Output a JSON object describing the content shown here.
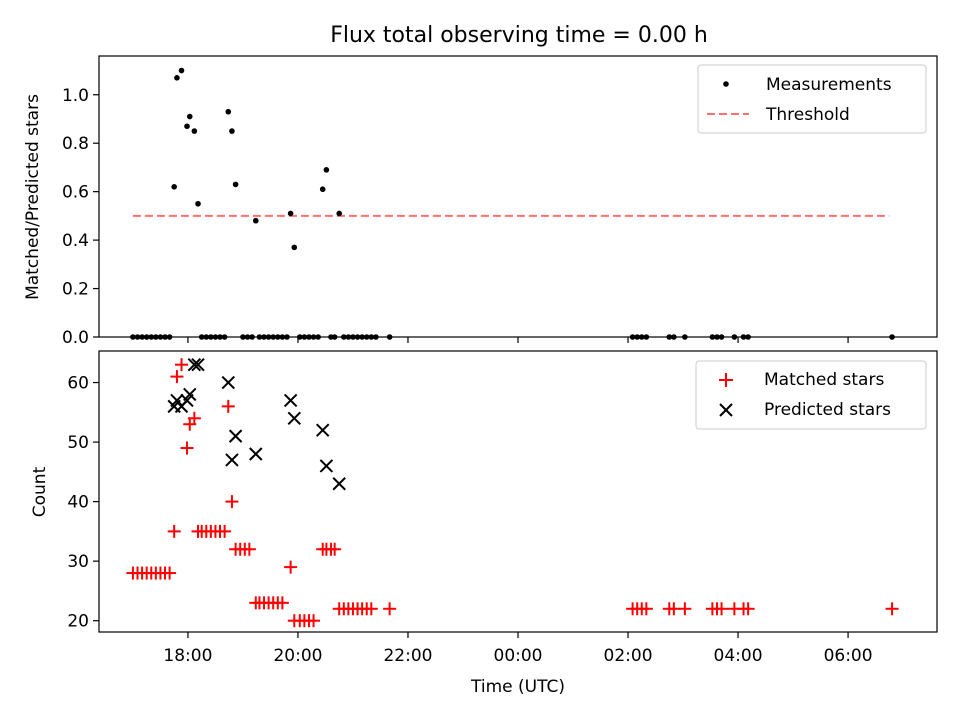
{
  "chart_data": [
    {
      "type": "scatter",
      "title": "Flux total observing time = 0.00 h",
      "xlabel": "",
      "ylabel": "Matched/Predicted stars",
      "xlim": [
        "16:23",
        "07:37"
      ],
      "ylim": [
        0,
        1.16
      ],
      "yticks": [
        "0.0",
        "0.2",
        "0.4",
        "0.6",
        "0.8",
        "1.0"
      ],
      "grid": false,
      "legend_position": "top-right",
      "series": [
        {
          "name": "Measurements",
          "marker": "dot",
          "color": "#000000",
          "points": [
            {
              "x": "17:00",
              "y": 0
            },
            {
              "x": "17:05",
              "y": 0
            },
            {
              "x": "17:10",
              "y": 0
            },
            {
              "x": "17:15",
              "y": 0
            },
            {
              "x": "17:20",
              "y": 0
            },
            {
              "x": "17:25",
              "y": 0
            },
            {
              "x": "17:30",
              "y": 0
            },
            {
              "x": "17:35",
              "y": 0
            },
            {
              "x": "17:40",
              "y": 0
            },
            {
              "x": "17:45",
              "y": 0.62
            },
            {
              "x": "17:48",
              "y": 1.07
            },
            {
              "x": "17:53",
              "y": 1.1
            },
            {
              "x": "17:59",
              "y": 0.87
            },
            {
              "x": "18:02",
              "y": 0.91
            },
            {
              "x": "18:07",
              "y": 0.85
            },
            {
              "x": "18:11",
              "y": 0.55
            },
            {
              "x": "18:15",
              "y": 0
            },
            {
              "x": "18:20",
              "y": 0
            },
            {
              "x": "18:25",
              "y": 0
            },
            {
              "x": "18:30",
              "y": 0
            },
            {
              "x": "18:35",
              "y": 0
            },
            {
              "x": "18:40",
              "y": 0
            },
            {
              "x": "18:44",
              "y": 0.93
            },
            {
              "x": "18:48",
              "y": 0.85
            },
            {
              "x": "18:52",
              "y": 0.63
            },
            {
              "x": "19:00",
              "y": 0
            },
            {
              "x": "19:05",
              "y": 0
            },
            {
              "x": "19:10",
              "y": 0
            },
            {
              "x": "19:14",
              "y": 0.48
            },
            {
              "x": "19:18",
              "y": 0
            },
            {
              "x": "19:23",
              "y": 0
            },
            {
              "x": "19:28",
              "y": 0
            },
            {
              "x": "19:33",
              "y": 0
            },
            {
              "x": "19:38",
              "y": 0
            },
            {
              "x": "19:43",
              "y": 0
            },
            {
              "x": "19:48",
              "y": 0
            },
            {
              "x": "19:52",
              "y": 0.51
            },
            {
              "x": "19:56",
              "y": 0.37
            },
            {
              "x": "20:02",
              "y": 0
            },
            {
              "x": "20:07",
              "y": 0
            },
            {
              "x": "20:12",
              "y": 0
            },
            {
              "x": "20:17",
              "y": 0
            },
            {
              "x": "20:22",
              "y": 0
            },
            {
              "x": "20:27",
              "y": 0.61
            },
            {
              "x": "20:31",
              "y": 0.69
            },
            {
              "x": "20:36",
              "y": 0
            },
            {
              "x": "20:40",
              "y": 0
            },
            {
              "x": "20:45",
              "y": 0.51
            },
            {
              "x": "20:50",
              "y": 0
            },
            {
              "x": "20:55",
              "y": 0
            },
            {
              "x": "21:00",
              "y": 0
            },
            {
              "x": "21:05",
              "y": 0
            },
            {
              "x": "21:10",
              "y": 0
            },
            {
              "x": "21:15",
              "y": 0
            },
            {
              "x": "21:20",
              "y": 0
            },
            {
              "x": "21:25",
              "y": 0
            },
            {
              "x": "21:40",
              "y": 0
            },
            {
              "x": "02:05",
              "y": 0
            },
            {
              "x": "02:10",
              "y": 0
            },
            {
              "x": "02:15",
              "y": 0
            },
            {
              "x": "02:20",
              "y": 0
            },
            {
              "x": "02:45",
              "y": 0
            },
            {
              "x": "02:50",
              "y": 0
            },
            {
              "x": "03:02",
              "y": 0
            },
            {
              "x": "03:32",
              "y": 0
            },
            {
              "x": "03:37",
              "y": 0
            },
            {
              "x": "03:42",
              "y": 0
            },
            {
              "x": "03:56",
              "y": 0
            },
            {
              "x": "04:06",
              "y": 0
            },
            {
              "x": "04:11",
              "y": 0
            },
            {
              "x": "06:48",
              "y": 0
            }
          ]
        },
        {
          "name": "Threshold",
          "type": "line",
          "style": "dashed",
          "color": "#ff7070",
          "points": [
            {
              "x": "17:00",
              "y": 0.5
            },
            {
              "x": "06:45",
              "y": 0.5
            }
          ]
        }
      ]
    },
    {
      "type": "scatter",
      "title": "",
      "xlabel": "Time (UTC)",
      "ylabel": "Count",
      "xlim": [
        "16:23",
        "07:37"
      ],
      "ylim": [
        18.1,
        65.3
      ],
      "xticks": [
        "18:00",
        "20:00",
        "22:00",
        "00:00",
        "02:00",
        "04:00",
        "06:00"
      ],
      "yticks": [
        "20",
        "30",
        "40",
        "50",
        "60"
      ],
      "grid": false,
      "legend_position": "top-right",
      "series": [
        {
          "name": "Matched stars",
          "marker": "plus",
          "color": "#ff0000",
          "points": [
            {
              "x": "17:00",
              "y": 28
            },
            {
              "x": "17:05",
              "y": 28
            },
            {
              "x": "17:10",
              "y": 28
            },
            {
              "x": "17:15",
              "y": 28
            },
            {
              "x": "17:20",
              "y": 28
            },
            {
              "x": "17:25",
              "y": 28
            },
            {
              "x": "17:30",
              "y": 28
            },
            {
              "x": "17:35",
              "y": 28
            },
            {
              "x": "17:40",
              "y": 28
            },
            {
              "x": "17:45",
              "y": 35
            },
            {
              "x": "17:48",
              "y": 61
            },
            {
              "x": "17:53",
              "y": 63
            },
            {
              "x": "17:59",
              "y": 49
            },
            {
              "x": "18:02",
              "y": 53
            },
            {
              "x": "18:07",
              "y": 54
            },
            {
              "x": "18:11",
              "y": 35
            },
            {
              "x": "18:15",
              "y": 35
            },
            {
              "x": "18:20",
              "y": 35
            },
            {
              "x": "18:25",
              "y": 35
            },
            {
              "x": "18:30",
              "y": 35
            },
            {
              "x": "18:35",
              "y": 35
            },
            {
              "x": "18:40",
              "y": 35
            },
            {
              "x": "18:44",
              "y": 56
            },
            {
              "x": "18:48",
              "y": 40
            },
            {
              "x": "18:52",
              "y": 32
            },
            {
              "x": "18:57",
              "y": 32
            },
            {
              "x": "19:02",
              "y": 32
            },
            {
              "x": "19:07",
              "y": 32
            },
            {
              "x": "19:14",
              "y": 23
            },
            {
              "x": "19:18",
              "y": 23
            },
            {
              "x": "19:23",
              "y": 23
            },
            {
              "x": "19:28",
              "y": 23
            },
            {
              "x": "19:33",
              "y": 23
            },
            {
              "x": "19:38",
              "y": 23
            },
            {
              "x": "19:43",
              "y": 23
            },
            {
              "x": "19:52",
              "y": 29
            },
            {
              "x": "19:56",
              "y": 20
            },
            {
              "x": "20:02",
              "y": 20
            },
            {
              "x": "20:07",
              "y": 20
            },
            {
              "x": "20:12",
              "y": 20
            },
            {
              "x": "20:17",
              "y": 20
            },
            {
              "x": "20:27",
              "y": 32
            },
            {
              "x": "20:31",
              "y": 32
            },
            {
              "x": "20:36",
              "y": 32
            },
            {
              "x": "20:40",
              "y": 32
            },
            {
              "x": "20:45",
              "y": 22
            },
            {
              "x": "20:50",
              "y": 22
            },
            {
              "x": "20:55",
              "y": 22
            },
            {
              "x": "21:00",
              "y": 22
            },
            {
              "x": "21:05",
              "y": 22
            },
            {
              "x": "21:10",
              "y": 22
            },
            {
              "x": "21:15",
              "y": 22
            },
            {
              "x": "21:20",
              "y": 22
            },
            {
              "x": "21:40",
              "y": 22
            },
            {
              "x": "02:05",
              "y": 22
            },
            {
              "x": "02:10",
              "y": 22
            },
            {
              "x": "02:15",
              "y": 22
            },
            {
              "x": "02:20",
              "y": 22
            },
            {
              "x": "02:45",
              "y": 22
            },
            {
              "x": "02:50",
              "y": 22
            },
            {
              "x": "03:02",
              "y": 22
            },
            {
              "x": "03:32",
              "y": 22
            },
            {
              "x": "03:37",
              "y": 22
            },
            {
              "x": "03:42",
              "y": 22
            },
            {
              "x": "03:56",
              "y": 22
            },
            {
              "x": "04:06",
              "y": 22
            },
            {
              "x": "04:11",
              "y": 22
            },
            {
              "x": "06:48",
              "y": 22
            }
          ]
        },
        {
          "name": "Predicted stars",
          "marker": "x",
          "color": "#000000",
          "points": [
            {
              "x": "17:45",
              "y": 56
            },
            {
              "x": "17:48",
              "y": 57
            },
            {
              "x": "17:53",
              "y": 56
            },
            {
              "x": "17:59",
              "y": 57
            },
            {
              "x": "18:02",
              "y": 58
            },
            {
              "x": "18:07",
              "y": 63
            },
            {
              "x": "18:11",
              "y": 63
            },
            {
              "x": "18:44",
              "y": 60
            },
            {
              "x": "18:48",
              "y": 47
            },
            {
              "x": "18:52",
              "y": 51
            },
            {
              "x": "19:14",
              "y": 48
            },
            {
              "x": "19:52",
              "y": 57
            },
            {
              "x": "19:56",
              "y": 54
            },
            {
              "x": "20:27",
              "y": 52
            },
            {
              "x": "20:31",
              "y": 46
            },
            {
              "x": "20:45",
              "y": 43
            }
          ]
        }
      ]
    }
  ]
}
